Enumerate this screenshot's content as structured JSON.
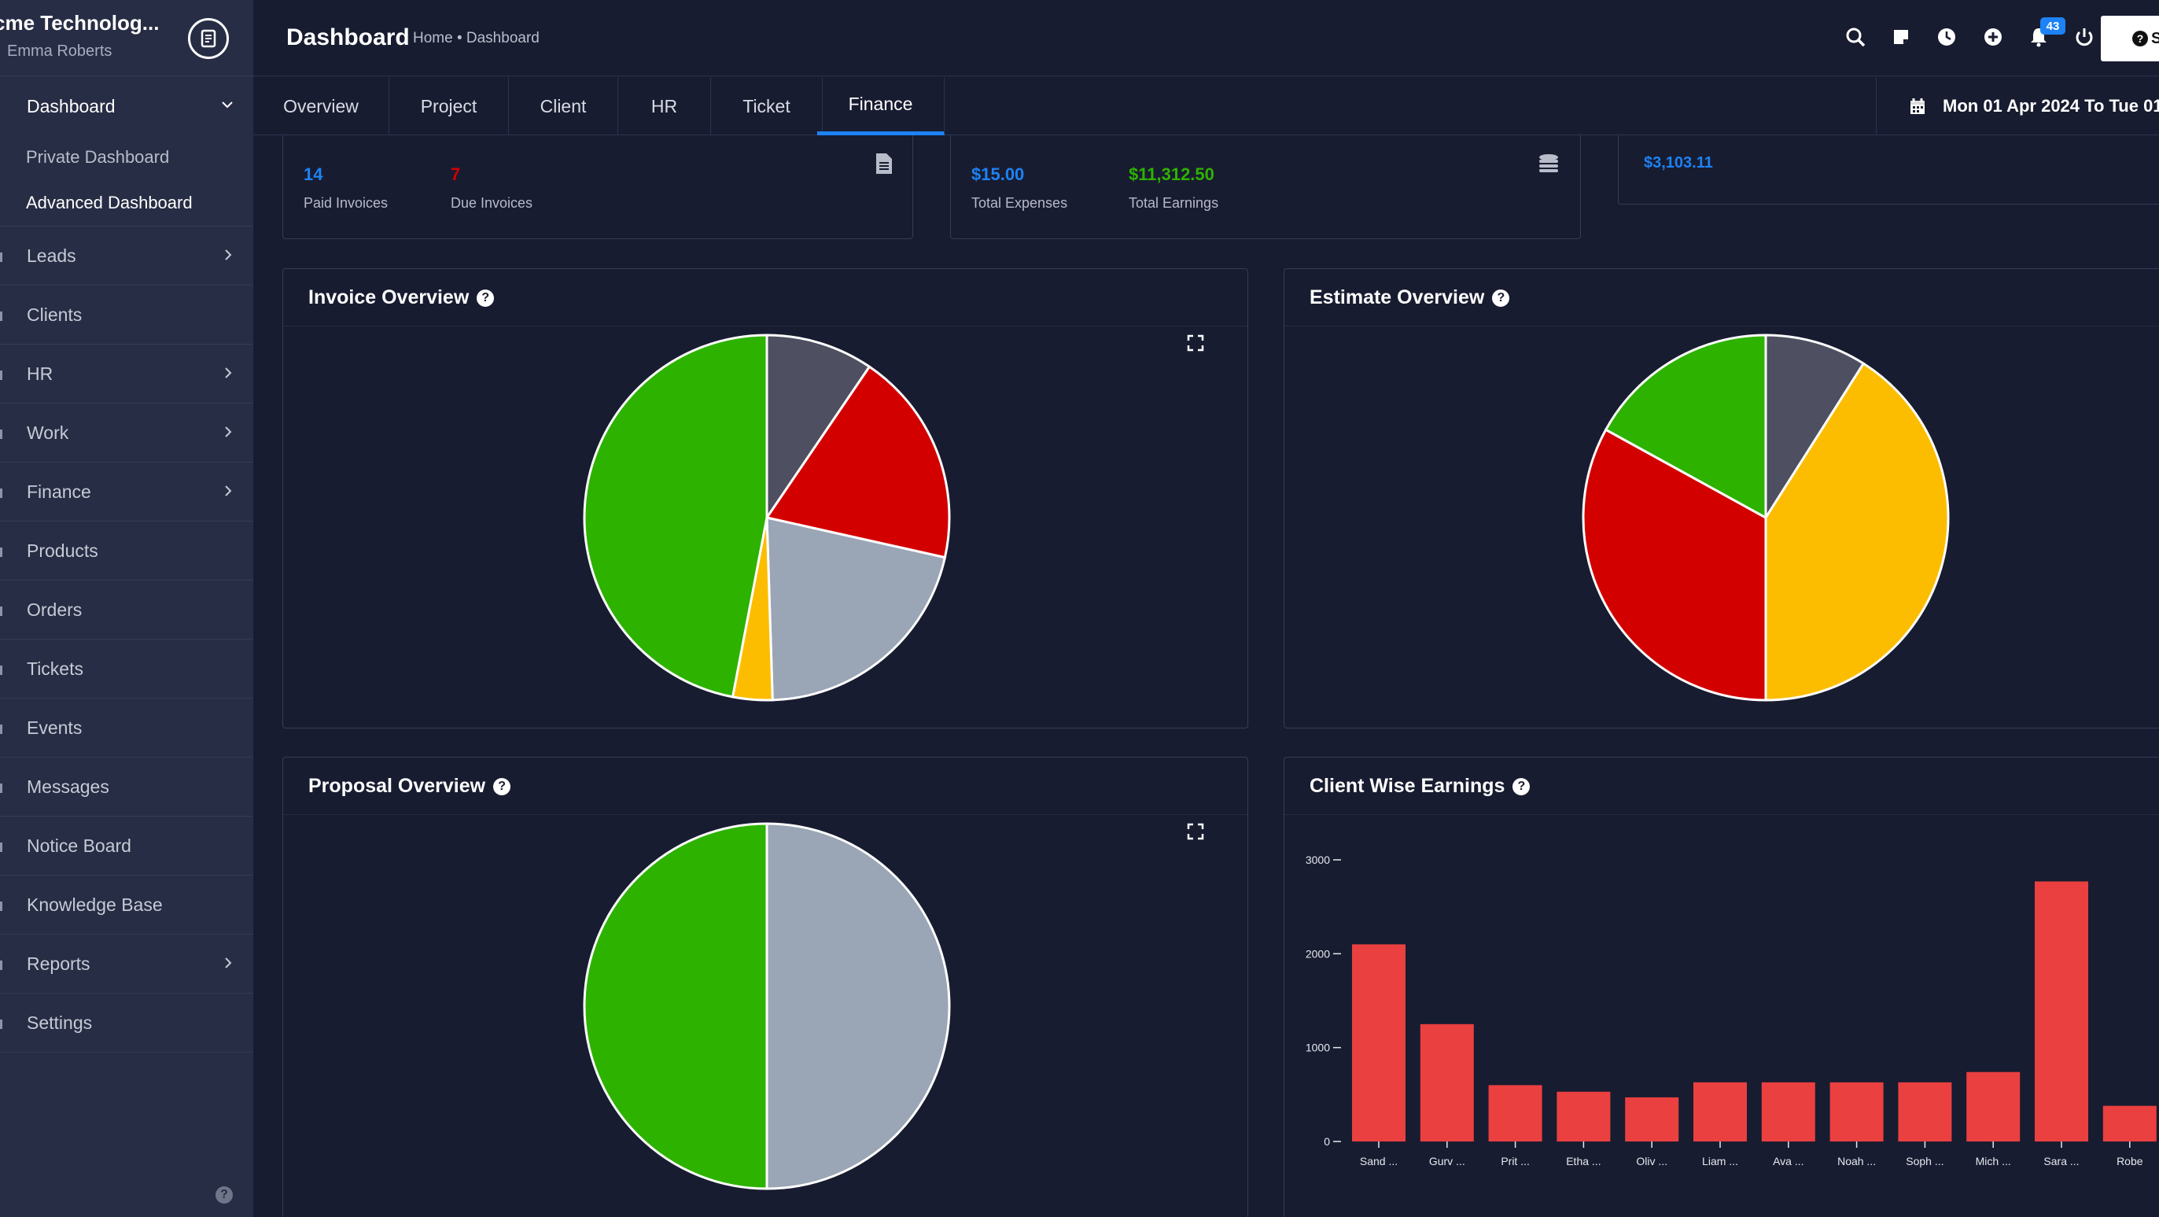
{
  "brand": {
    "name": "cme Technolog...",
    "user": "Emma Roberts"
  },
  "sidebar": {
    "items": [
      {
        "label": "Dashboard",
        "expanded": true
      },
      {
        "label": "Leads"
      },
      {
        "label": "Clients"
      },
      {
        "label": "HR"
      },
      {
        "label": "Work"
      },
      {
        "label": "Finance"
      },
      {
        "label": "Products"
      },
      {
        "label": "Orders"
      },
      {
        "label": "Tickets"
      },
      {
        "label": "Events"
      },
      {
        "label": "Messages"
      },
      {
        "label": "Notice Board"
      },
      {
        "label": "Knowledge Base"
      },
      {
        "label": "Reports"
      },
      {
        "label": "Settings"
      }
    ],
    "dashboard_sub": [
      "Private Dashboard",
      "Advanced Dashboard"
    ]
  },
  "header": {
    "title": "Dashboard",
    "breadcrumb": "Home • Dashboard",
    "notification_count": "43",
    "help_label": "S"
  },
  "tabs": [
    "Overview",
    "Project",
    "Client",
    "HR",
    "Ticket",
    "Finance"
  ],
  "active_tab": "Finance",
  "date_range": "Mon 01 Apr 2024 To Tue 01",
  "stats": {
    "paid_invoices": {
      "value": "14",
      "label": "Paid Invoices"
    },
    "due_invoices": {
      "value": "7",
      "label": "Due Invoices"
    },
    "total_expenses": {
      "value": "$15.00",
      "label": "Total Expenses"
    },
    "total_earnings": {
      "value": "$11,312.50",
      "label": "Total Earnings"
    },
    "pending_amount": {
      "value": "$3,103.11"
    }
  },
  "cards": {
    "invoice": "Invoice Overview",
    "estimate": "Estimate Overview",
    "proposal": "Proposal Overview",
    "client_earnings": "Client Wise Earnings"
  },
  "colors": {
    "green": "#2db200",
    "red": "#d30000",
    "yellow": "#fcbd01",
    "gray": "#9aa5b6",
    "dark": "#4e5061",
    "bar": "#ea4040",
    "accent": "#1d82f5"
  },
  "chart_data": [
    {
      "type": "pie",
      "name": "invoice",
      "slices": [
        {
          "color": "#4e5061",
          "value": 9.5
        },
        {
          "color": "#d30000",
          "value": 19
        },
        {
          "color": "#9aa5b6",
          "value": 21
        },
        {
          "color": "#fcbd01",
          "value": 3.5
        },
        {
          "color": "#2db200",
          "value": 47
        }
      ]
    },
    {
      "type": "pie",
      "name": "estimate",
      "slices": [
        {
          "color": "#4e5061",
          "value": 9
        },
        {
          "color": "#fcbd01",
          "value": 41
        },
        {
          "color": "#d30000",
          "value": 33
        },
        {
          "color": "#2db200",
          "value": 17
        }
      ]
    },
    {
      "type": "pie",
      "name": "proposal",
      "slices": [
        {
          "color": "#9aa5b6",
          "value": 50
        },
        {
          "color": "#2db200",
          "value": 50
        }
      ]
    },
    {
      "type": "bar",
      "name": "client_earnings",
      "categories": [
        "Sand ...",
        "Gurv ...",
        "Prit ...",
        "Etha ...",
        "Oliv ...",
        "Liam ...",
        "Ava ...",
        "Noah ...",
        "Soph ...",
        "Mich ...",
        "Sara ...",
        "Robe"
      ],
      "values": [
        2100,
        1250,
        600,
        530,
        470,
        630,
        630,
        630,
        630,
        740,
        2770,
        380
      ],
      "yticks": [
        0,
        1000,
        2000,
        3000
      ],
      "ylim": [
        0,
        3000
      ]
    }
  ]
}
